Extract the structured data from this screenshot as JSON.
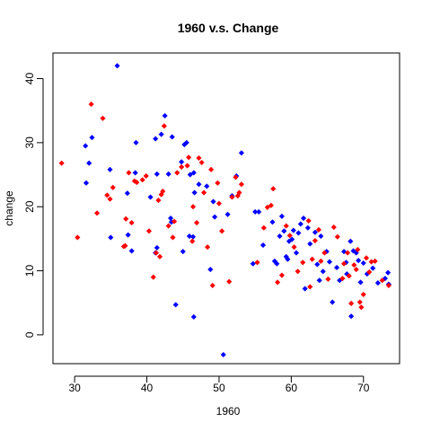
{
  "chart_data": {
    "type": "scatter",
    "title": "1960 v.s. Change",
    "xlabel": "1960",
    "ylabel": "change",
    "xlim": [
      27,
      75
    ],
    "ylim": [
      -4.5,
      44
    ],
    "xticks": [
      30,
      40,
      50,
      60,
      70
    ],
    "yticks": [
      0,
      10,
      20,
      30,
      40
    ],
    "grid": false,
    "legend": "none",
    "series": [
      {
        "color": "#0000ff",
        "marker": "diamond",
        "points": [
          [
            31.5,
            29.5
          ],
          [
            32.0,
            26.8
          ],
          [
            32.4,
            30.8
          ],
          [
            31.6,
            23.7
          ],
          [
            34.9,
            25.8
          ],
          [
            35.0,
            15.2
          ],
          [
            35.9,
            42.0
          ],
          [
            37.4,
            15.6
          ],
          [
            37.3,
            22.1
          ],
          [
            37.9,
            13.1
          ],
          [
            38.5,
            30.0
          ],
          [
            38.4,
            25.3
          ],
          [
            40.5,
            21.5
          ],
          [
            41.2,
            12.8
          ],
          [
            41.4,
            13.6
          ],
          [
            41.2,
            30.6
          ],
          [
            41.4,
            25.1
          ],
          [
            42.5,
            34.2
          ],
          [
            42.0,
            31.3
          ],
          [
            43.0,
            25.1
          ],
          [
            43.4,
            17.6
          ],
          [
            43.3,
            18.2
          ],
          [
            43.5,
            30.9
          ],
          [
            44.0,
            4.7
          ],
          [
            44.8,
            27.0
          ],
          [
            45.0,
            13.0
          ],
          [
            45.2,
            29.7
          ],
          [
            45.5,
            30.0
          ],
          [
            45.9,
            15.4
          ],
          [
            46.0,
            25.0
          ],
          [
            46.5,
            25.3
          ],
          [
            46.4,
            15.3
          ],
          [
            46.5,
            2.8
          ],
          [
            46.6,
            22.2
          ],
          [
            47.2,
            23.5
          ],
          [
            48.3,
            23.2
          ],
          [
            48.8,
            10.2
          ],
          [
            49.2,
            20.8
          ],
          [
            49.4,
            18.4
          ],
          [
            50.6,
            -3.1
          ],
          [
            51.2,
            18.8
          ],
          [
            51.8,
            21.7
          ],
          [
            52.4,
            24.8
          ],
          [
            53.1,
            28.4
          ],
          [
            54.7,
            11.1
          ],
          [
            55.0,
            19.2
          ],
          [
            55.5,
            19.2
          ],
          [
            56.1,
            14.0
          ],
          [
            57.4,
            17.6
          ],
          [
            57.7,
            11.5
          ],
          [
            58.0,
            11.1
          ],
          [
            58.4,
            15.4
          ],
          [
            58.7,
            18.5
          ],
          [
            59.0,
            16.2
          ],
          [
            59.3,
            12.2
          ],
          [
            59.5,
            11.8
          ],
          [
            59.7,
            14.6
          ],
          [
            60.1,
            14.9
          ],
          [
            60.3,
            16.3
          ],
          [
            60.7,
            12.8
          ],
          [
            61.0,
            15.9
          ],
          [
            61.3,
            17.3
          ],
          [
            61.7,
            18.2
          ],
          [
            61.9,
            7.2
          ],
          [
            62.3,
            16.7
          ],
          [
            62.6,
            14.2
          ],
          [
            63.3,
            16.0
          ],
          [
            63.6,
            11.0
          ],
          [
            63.9,
            8.5
          ],
          [
            64.1,
            15.4
          ],
          [
            64.4,
            9.9
          ],
          [
            64.9,
            13.0
          ],
          [
            65.3,
            11.4
          ],
          [
            65.7,
            5.1
          ],
          [
            66.3,
            10.5
          ],
          [
            66.7,
            8.5
          ],
          [
            67.3,
            13.0
          ],
          [
            67.6,
            11.3
          ],
          [
            67.7,
            9.5
          ],
          [
            68.2,
            14.6
          ],
          [
            68.6,
            13.1
          ],
          [
            68.3,
            2.9
          ],
          [
            69.0,
            12.8
          ],
          [
            69.3,
            11.6
          ],
          [
            69.6,
            8.2
          ],
          [
            70.0,
            11.2
          ],
          [
            70.5,
            9.5
          ],
          [
            71.3,
            10.4
          ],
          [
            72.0,
            8.1
          ],
          [
            73.0,
            8.8
          ],
          [
            73.4,
            9.7
          ],
          [
            73.5,
            7.9
          ]
        ]
      },
      {
        "color": "#ff0000",
        "marker": "diamond",
        "points": [
          [
            28.2,
            26.8
          ],
          [
            30.4,
            15.2
          ],
          [
            32.3,
            36.0
          ],
          [
            33.1,
            19.0
          ],
          [
            33.9,
            33.8
          ],
          [
            34.5,
            21.8
          ],
          [
            34.9,
            21.2
          ],
          [
            35.3,
            23.0
          ],
          [
            36.8,
            13.8
          ],
          [
            37.0,
            13.9
          ],
          [
            37.1,
            18.1
          ],
          [
            37.5,
            25.3
          ],
          [
            37.9,
            17.5
          ],
          [
            38.3,
            24.0
          ],
          [
            38.6,
            23.8
          ],
          [
            39.4,
            24.2
          ],
          [
            39.9,
            24.8
          ],
          [
            40.3,
            16.2
          ],
          [
            40.9,
            9.0
          ],
          [
            41.3,
            12.8
          ],
          [
            41.6,
            21.0
          ],
          [
            41.8,
            12.2
          ],
          [
            42.0,
            21.9
          ],
          [
            42.2,
            22.4
          ],
          [
            42.4,
            32.6
          ],
          [
            43.0,
            17.0
          ],
          [
            43.6,
            15.2
          ],
          [
            43.8,
            17.7
          ],
          [
            44.2,
            25.3
          ],
          [
            44.8,
            26.2
          ],
          [
            45.6,
            26.4
          ],
          [
            45.8,
            27.7
          ],
          [
            46.3,
            14.6
          ],
          [
            46.4,
            20.0
          ],
          [
            46.9,
            17.5
          ],
          [
            47.2,
            27.6
          ],
          [
            47.6,
            26.9
          ],
          [
            47.9,
            22.2
          ],
          [
            48.4,
            13.7
          ],
          [
            48.9,
            25.8
          ],
          [
            49.1,
            7.7
          ],
          [
            49.8,
            23.7
          ],
          [
            50.0,
            20.5
          ],
          [
            50.4,
            16.2
          ],
          [
            51.4,
            8.3
          ],
          [
            51.8,
            21.5
          ],
          [
            52.3,
            24.6
          ],
          [
            52.6,
            21.7
          ],
          [
            52.8,
            22.2
          ],
          [
            53.1,
            23.5
          ],
          [
            55.3,
            11.3
          ],
          [
            56.2,
            16.7
          ],
          [
            56.7,
            19.9
          ],
          [
            57.2,
            20.2
          ],
          [
            57.5,
            22.8
          ],
          [
            58.1,
            8.2
          ],
          [
            58.7,
            9.3
          ],
          [
            59.3,
            17.0
          ],
          [
            59.8,
            15.5
          ],
          [
            60.4,
            13.7
          ],
          [
            60.9,
            9.9
          ],
          [
            61.6,
            11.3
          ],
          [
            62.4,
            17.8
          ],
          [
            62.6,
            7.5
          ],
          [
            62.9,
            11.8
          ],
          [
            63.3,
            14.7
          ],
          [
            63.8,
            16.4
          ],
          [
            64.1,
            11.5
          ],
          [
            64.6,
            12.8
          ],
          [
            65.1,
            8.7
          ],
          [
            65.9,
            16.8
          ],
          [
            66.4,
            15.3
          ],
          [
            67.1,
            8.8
          ],
          [
            67.3,
            11.1
          ],
          [
            67.8,
            12.8
          ],
          [
            68.0,
            9.2
          ],
          [
            68.3,
            4.9
          ],
          [
            68.7,
            10.9
          ],
          [
            69.0,
            10.2
          ],
          [
            69.2,
            13.3
          ],
          [
            69.5,
            5.1
          ],
          [
            69.7,
            4.3
          ],
          [
            70.0,
            6.3
          ],
          [
            70.4,
            12.0
          ],
          [
            70.8,
            9.8
          ],
          [
            71.1,
            11.4
          ],
          [
            71.6,
            11.5
          ],
          [
            72.6,
            8.5
          ],
          [
            73.5,
            7.7
          ]
        ]
      }
    ]
  }
}
